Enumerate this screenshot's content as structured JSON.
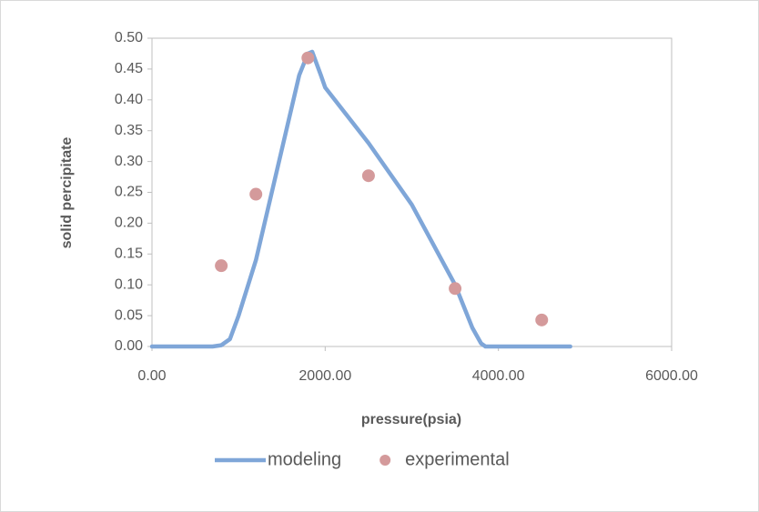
{
  "chart_data": {
    "type": "combo",
    "xlabel": "pressure(psia)",
    "ylabel": "solid percipitate",
    "xlim": [
      0,
      6000
    ],
    "xticks": [
      {
        "value": 0,
        "label": "0.00"
      },
      {
        "value": 2000,
        "label": "2000.00"
      },
      {
        "value": 4000,
        "label": "4000.00"
      },
      {
        "value": 6000,
        "label": "6000.00"
      }
    ],
    "ylim": [
      0,
      0.5
    ],
    "yticks": [
      {
        "value": 0,
        "label": "0.00"
      },
      0.05,
      {
        "value": 0.1,
        "label": "0.10"
      },
      0.15,
      {
        "value": 0.2,
        "label": "0.20"
      },
      0.25,
      {
        "value": 0.3,
        "label": "0.30"
      },
      0.35,
      {
        "value": 0.4,
        "label": "0.40"
      },
      0.45,
      {
        "value": 0.5,
        "label": "0.50"
      }
    ],
    "legend": "bottom",
    "series": [
      {
        "name": "modeling",
        "type": "line",
        "color": "#7fa6d8",
        "x": [
          0,
          700,
          800,
          900,
          1000,
          1200,
          1400,
          1600,
          1700,
          1800,
          1850,
          1950,
          2000,
          2500,
          3000,
          3500,
          3700,
          3800,
          3850,
          4000,
          4830
        ],
        "values": [
          0,
          0,
          0.002,
          0.012,
          0.05,
          0.14,
          0.26,
          0.38,
          0.44,
          0.475,
          0.478,
          0.44,
          0.42,
          0.33,
          0.23,
          0.1,
          0.03,
          0.005,
          0,
          0,
          0
        ]
      },
      {
        "name": "experimental",
        "type": "scatter",
        "color": "#d49a9b",
        "x": [
          800,
          1200,
          1800,
          2500,
          3500,
          4500
        ],
        "values": [
          0.131,
          0.247,
          0.468,
          0.277,
          0.094,
          0.043
        ]
      }
    ]
  }
}
